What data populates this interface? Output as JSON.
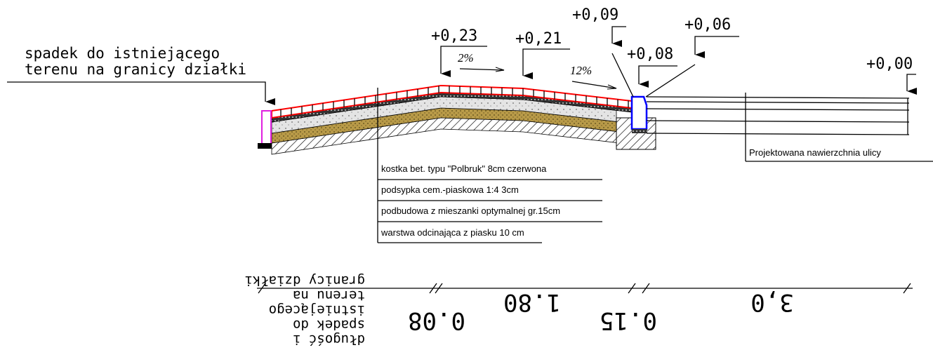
{
  "boundary_note": [
    "spadek do istniejącego",
    "terenu na granicy działki"
  ],
  "elevations": [
    "+0,23",
    "+0,21",
    "+0,09",
    "+0,08",
    "+0,06",
    "+0,00"
  ],
  "slopes": [
    "2%",
    "12%"
  ],
  "layers": [
    "kostka bet. typu \"Polbruk\" 8cm czerwona",
    "podsypka cem.-piaskowa 1:4 3cm",
    "podbudowa z mieszanki optymalnej gr.15cm",
    "warstwa odcinająca z piasku 10 cm"
  ],
  "street_label": "Projektowana nawierzchnia ulicy",
  "dimensions": {
    "values": [
      "0.08",
      "1.80",
      "0.15",
      "3,0"
    ],
    "note": [
      "długość   i",
      "spadek do",
      "istniejącego",
      "terenu na",
      "granicy działki"
    ]
  }
}
